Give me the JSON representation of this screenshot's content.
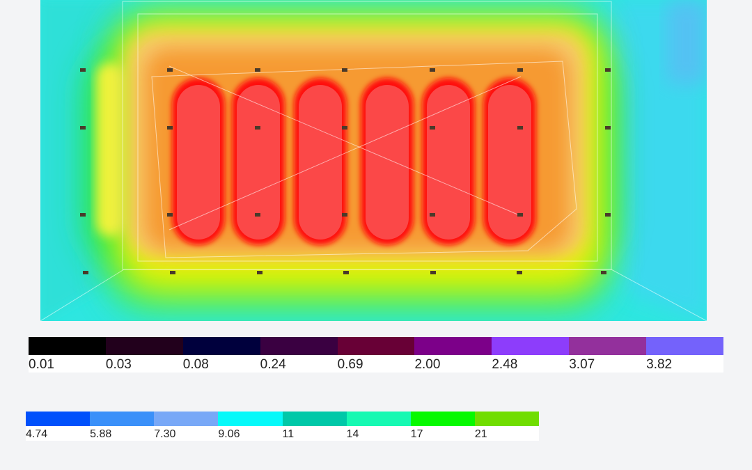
{
  "render": {
    "luminaires": 6,
    "sensor_columns": 7,
    "sensor_rows": 4
  },
  "legend_top": {
    "labels": [
      "0.01",
      "0.03",
      "0.08",
      "0.24",
      "0.69",
      "2.00",
      "2.48",
      "3.07",
      "3.82"
    ],
    "colors": [
      "#000000",
      "#22001c",
      "#00003d",
      "#3a0041",
      "#680036",
      "#7c0089",
      "#8d3dfb",
      "#93309c",
      "#7462fb"
    ]
  },
  "legend_bottom": {
    "labels": [
      "4.74",
      "5.88",
      "7.30",
      "9.06",
      "11",
      "14",
      "17",
      "21"
    ],
    "colors": [
      "#0050fb",
      "#3a90f9",
      "#78a8f7",
      "#06f9f9",
      "#00c8a8",
      "#16f9b2",
      "#06f900",
      "#70dd00"
    ]
  }
}
